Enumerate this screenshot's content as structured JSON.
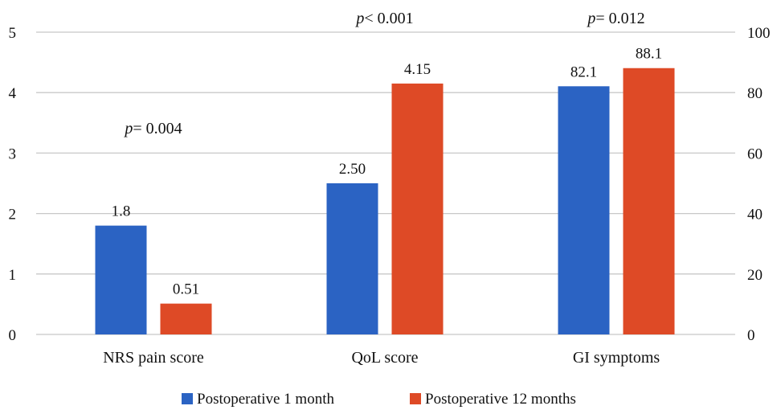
{
  "chart_data": {
    "type": "bar",
    "categories": [
      "NRS pain score",
      "QoL score",
      "GI symptoms"
    ],
    "series": [
      {
        "name": "Postoperative 1 month",
        "color": "#2b63c3",
        "values": [
          1.8,
          2.5,
          82.1
        ],
        "labels": [
          "1.8",
          "2.50",
          "82.1"
        ]
      },
      {
        "name": "Postoperative 12 months",
        "color": "#de4a26",
        "values": [
          0.51,
          4.15,
          88.1
        ],
        "labels": [
          "0.51",
          "4.15",
          "88.1"
        ]
      }
    ],
    "category_axis": [
      "left",
      "left",
      "right"
    ],
    "p_values": [
      {
        "prefix": "p",
        "text": "= 0.004"
      },
      {
        "prefix": "p",
        "text": "< 0.001"
      },
      {
        "prefix": "p",
        "text": "= 0.012"
      }
    ],
    "left_axis": {
      "ylim": [
        0,
        5
      ],
      "ticks": [
        "0",
        "1",
        "2",
        "3",
        "4",
        "5"
      ]
    },
    "right_axis": {
      "ylim": [
        0,
        100
      ],
      "ticks": [
        "0",
        "20",
        "40",
        "60",
        "80",
        "100"
      ]
    },
    "title": "",
    "xlabel": "",
    "ylabel": "",
    "grid": true,
    "legend": {
      "placement": "bottom"
    }
  }
}
